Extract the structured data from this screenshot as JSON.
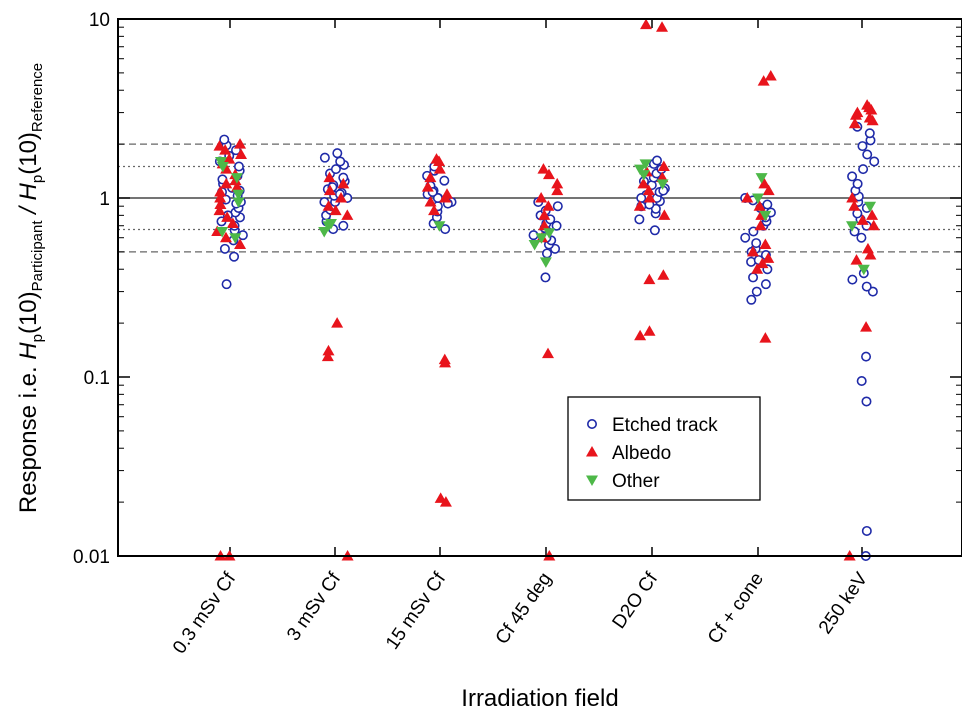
{
  "chart_data": {
    "type": "scatter",
    "xlabel": "Irradiation field",
    "ylabel": {
      "prefix": "Response i.e. ",
      "H": "H",
      "p": "p",
      "arg": "(10)",
      "participant": "Participant",
      "slash": " / ",
      "reference": "Reference"
    },
    "y_scale": "log",
    "ylim": [
      0.01,
      10
    ],
    "y_ticks": [
      {
        "value": 0.01,
        "label": "0.01"
      },
      {
        "value": 0.1,
        "label": "0.1"
      },
      {
        "value": 1,
        "label": "1"
      },
      {
        "value": 10,
        "label": "10"
      }
    ],
    "reference_lines": [
      {
        "value": 1,
        "style": "solid"
      },
      {
        "value": 1.5,
        "style": "dotted"
      },
      {
        "value": 0.667,
        "style": "dotted"
      },
      {
        "value": 2,
        "style": "dashed"
      },
      {
        "value": 0.5,
        "style": "dashed"
      }
    ],
    "categories": [
      "0.3 mSv Cf",
      "3 mSv Cf",
      "15 mSv Cf",
      "Cf 45 deg",
      "D2O Cf",
      "Cf + cone",
      "250 keV"
    ],
    "legend_position": "center-right",
    "colors": {
      "etched_track": "#1f2aa8",
      "albedo": "#e8141c",
      "other": "#4db848"
    },
    "series": [
      {
        "name": "Etched track",
        "marker": "open-circle",
        "points": [
          [
            0,
            0.47
          ],
          [
            0,
            0.52
          ],
          [
            0,
            0.58
          ],
          [
            0,
            0.62
          ],
          [
            0,
            0.66
          ],
          [
            0,
            0.7
          ],
          [
            0,
            0.74
          ],
          [
            0,
            0.78
          ],
          [
            0,
            0.83
          ],
          [
            0,
            0.88
          ],
          [
            0,
            0.93
          ],
          [
            0,
            0.98
          ],
          [
            0,
            1.03
          ],
          [
            0,
            1.08
          ],
          [
            0,
            1.14
          ],
          [
            0,
            1.2
          ],
          [
            0,
            1.27
          ],
          [
            0,
            1.33
          ],
          [
            0,
            1.42
          ],
          [
            0,
            1.5
          ],
          [
            0,
            1.6
          ],
          [
            0,
            1.72
          ],
          [
            0,
            1.85
          ],
          [
            0,
            1.97
          ],
          [
            0,
            2.12
          ],
          [
            0,
            0.33
          ],
          [
            0,
            0.95
          ],
          [
            0,
            1.1
          ],
          [
            0,
            0.8
          ],
          [
            1,
            0.67
          ],
          [
            1,
            0.7
          ],
          [
            1,
            0.74
          ],
          [
            1,
            0.8
          ],
          [
            1,
            0.86
          ],
          [
            1,
            0.9
          ],
          [
            1,
            0.95
          ],
          [
            1,
            1.0
          ],
          [
            1,
            1.03
          ],
          [
            1,
            1.07
          ],
          [
            1,
            1.12
          ],
          [
            1,
            1.18
          ],
          [
            1,
            1.24
          ],
          [
            1,
            1.3
          ],
          [
            1,
            1.37
          ],
          [
            1,
            1.45
          ],
          [
            1,
            1.53
          ],
          [
            1,
            1.6
          ],
          [
            1,
            1.68
          ],
          [
            1,
            1.78
          ],
          [
            1,
            0.95
          ],
          [
            1,
            1.05
          ],
          [
            1,
            1.15
          ],
          [
            2,
            0.67
          ],
          [
            2,
            0.72
          ],
          [
            2,
            0.78
          ],
          [
            2,
            0.84
          ],
          [
            2,
            0.9
          ],
          [
            2,
            0.95
          ],
          [
            2,
            1.0
          ],
          [
            2,
            1.05
          ],
          [
            2,
            1.1
          ],
          [
            2,
            1.17
          ],
          [
            2,
            1.25
          ],
          [
            2,
            1.33
          ],
          [
            2,
            1.42
          ],
          [
            2,
            1.5
          ],
          [
            2,
            1.0
          ],
          [
            2,
            1.08
          ],
          [
            2,
            0.93
          ],
          [
            3,
            0.36
          ],
          [
            3,
            0.49
          ],
          [
            3,
            0.52
          ],
          [
            3,
            0.55
          ],
          [
            3,
            0.58
          ],
          [
            3,
            0.62
          ],
          [
            3,
            0.65
          ],
          [
            3,
            0.68
          ],
          [
            3,
            0.72
          ],
          [
            3,
            0.76
          ],
          [
            3,
            0.8
          ],
          [
            3,
            0.85
          ],
          [
            3,
            0.9
          ],
          [
            3,
            0.95
          ],
          [
            3,
            0.6
          ],
          [
            3,
            0.7
          ],
          [
            4,
            0.66
          ],
          [
            4,
            0.76
          ],
          [
            4,
            0.82
          ],
          [
            4,
            0.87
          ],
          [
            4,
            0.92
          ],
          [
            4,
            0.96
          ],
          [
            4,
            1.0
          ],
          [
            4,
            1.04
          ],
          [
            4,
            1.08
          ],
          [
            4,
            1.13
          ],
          [
            4,
            1.18
          ],
          [
            4,
            1.24
          ],
          [
            4,
            1.3
          ],
          [
            4,
            1.37
          ],
          [
            4,
            1.45
          ],
          [
            4,
            1.55
          ],
          [
            4,
            1.62
          ],
          [
            4,
            1.0
          ],
          [
            4,
            1.1
          ],
          [
            4,
            0.9
          ],
          [
            5,
            0.27
          ],
          [
            5,
            0.3
          ],
          [
            5,
            0.33
          ],
          [
            5,
            0.36
          ],
          [
            5,
            0.4
          ],
          [
            5,
            0.44
          ],
          [
            5,
            0.48
          ],
          [
            5,
            0.52
          ],
          [
            5,
            0.56
          ],
          [
            5,
            0.6
          ],
          [
            5,
            0.65
          ],
          [
            5,
            0.7
          ],
          [
            5,
            0.74
          ],
          [
            5,
            0.78
          ],
          [
            5,
            0.83
          ],
          [
            5,
            0.88
          ],
          [
            5,
            0.92
          ],
          [
            5,
            0.97
          ],
          [
            5,
            1.0
          ],
          [
            5,
            0.5
          ],
          [
            5,
            0.45
          ],
          [
            6,
            0.01
          ],
          [
            6,
            0.0138
          ],
          [
            6,
            0.073
          ],
          [
            6,
            0.095
          ],
          [
            6,
            0.13
          ],
          [
            6,
            0.3
          ],
          [
            6,
            0.32
          ],
          [
            6,
            0.35
          ],
          [
            6,
            0.38
          ],
          [
            6,
            0.65
          ],
          [
            6,
            0.7
          ],
          [
            6,
            0.76
          ],
          [
            6,
            0.82
          ],
          [
            6,
            0.88
          ],
          [
            6,
            0.95
          ],
          [
            6,
            1.02
          ],
          [
            6,
            1.1
          ],
          [
            6,
            1.2
          ],
          [
            6,
            1.32
          ],
          [
            6,
            1.45
          ],
          [
            6,
            1.6
          ],
          [
            6,
            1.75
          ],
          [
            6,
            1.95
          ],
          [
            6,
            2.1
          ],
          [
            6,
            2.3
          ],
          [
            6,
            2.5
          ],
          [
            6,
            0.6
          ]
        ]
      },
      {
        "name": "Albedo",
        "marker": "filled-triangle-up",
        "points": [
          [
            0,
            0.01
          ],
          [
            0,
            0.01
          ],
          [
            0,
            0.55
          ],
          [
            0,
            0.6
          ],
          [
            0,
            0.65
          ],
          [
            0,
            0.72
          ],
          [
            0,
            0.78
          ],
          [
            0,
            0.85
          ],
          [
            0,
            0.92
          ],
          [
            0,
            1.0
          ],
          [
            0,
            1.08
          ],
          [
            0,
            1.15
          ],
          [
            0,
            1.25
          ],
          [
            0,
            1.35
          ],
          [
            0,
            1.45
          ],
          [
            0,
            1.55
          ],
          [
            0,
            1.65
          ],
          [
            0,
            1.75
          ],
          [
            0,
            1.85
          ],
          [
            0,
            1.95
          ],
          [
            0,
            2.0
          ],
          [
            0,
            1.2
          ],
          [
            1,
            0.01
          ],
          [
            1,
            0.13
          ],
          [
            1,
            0.14
          ],
          [
            1,
            0.2
          ],
          [
            1,
            0.8
          ],
          [
            1,
            0.9
          ],
          [
            1,
            1.0
          ],
          [
            1,
            1.1
          ],
          [
            1,
            1.2
          ],
          [
            1,
            1.3
          ],
          [
            1,
            0.85
          ],
          [
            2,
            0.02
          ],
          [
            2,
            0.021
          ],
          [
            2,
            0.12
          ],
          [
            2,
            0.125
          ],
          [
            2,
            0.85
          ],
          [
            2,
            0.95
          ],
          [
            2,
            1.05
          ],
          [
            2,
            1.15
          ],
          [
            2,
            1.3
          ],
          [
            2,
            1.45
          ],
          [
            2,
            1.6
          ],
          [
            2,
            1.65
          ],
          [
            2,
            1.0
          ],
          [
            3,
            0.01
          ],
          [
            3,
            0.135
          ],
          [
            3,
            0.6
          ],
          [
            3,
            0.7
          ],
          [
            3,
            0.8
          ],
          [
            3,
            0.9
          ],
          [
            3,
            1.0
          ],
          [
            3,
            1.1
          ],
          [
            3,
            1.2
          ],
          [
            3,
            1.35
          ],
          [
            3,
            1.45
          ],
          [
            4,
            9.0
          ],
          [
            4,
            9.3
          ],
          [
            4,
            0.17
          ],
          [
            4,
            0.18
          ],
          [
            4,
            0.35
          ],
          [
            4,
            0.37
          ],
          [
            4,
            0.8
          ],
          [
            4,
            0.9
          ],
          [
            4,
            1.0
          ],
          [
            4,
            1.1
          ],
          [
            4,
            1.2
          ],
          [
            4,
            1.3
          ],
          [
            4,
            1.4
          ],
          [
            4,
            1.5
          ],
          [
            5,
            4.5
          ],
          [
            5,
            4.8
          ],
          [
            5,
            0.165
          ],
          [
            5,
            0.4
          ],
          [
            5,
            0.43
          ],
          [
            5,
            0.46
          ],
          [
            5,
            0.5
          ],
          [
            5,
            0.55
          ],
          [
            5,
            0.7
          ],
          [
            5,
            0.8
          ],
          [
            5,
            0.9
          ],
          [
            5,
            1.0
          ],
          [
            5,
            1.1
          ],
          [
            5,
            1.2
          ],
          [
            6,
            0.01
          ],
          [
            6,
            0.19
          ],
          [
            6,
            0.45
          ],
          [
            6,
            0.48
          ],
          [
            6,
            0.52
          ],
          [
            6,
            0.7
          ],
          [
            6,
            0.75
          ],
          [
            6,
            0.8
          ],
          [
            6,
            0.9
          ],
          [
            6,
            1.0
          ],
          [
            6,
            2.6
          ],
          [
            6,
            2.7
          ],
          [
            6,
            2.8
          ],
          [
            6,
            2.9
          ],
          [
            6,
            3.0
          ],
          [
            6,
            3.1
          ],
          [
            6,
            3.2
          ],
          [
            6,
            3.3
          ]
        ]
      },
      {
        "name": "Other",
        "marker": "filled-triangle-down",
        "points": [
          [
            0,
            0.6
          ],
          [
            0,
            0.65
          ],
          [
            0,
            0.95
          ],
          [
            0,
            1.05
          ],
          [
            0,
            1.3
          ],
          [
            0,
            1.5
          ],
          [
            0,
            1.6
          ],
          [
            1,
            0.65
          ],
          [
            1,
            0.7
          ],
          [
            1,
            0.72
          ],
          [
            2,
            0.7
          ],
          [
            3,
            0.44
          ],
          [
            3,
            0.55
          ],
          [
            3,
            0.6
          ],
          [
            3,
            0.64
          ],
          [
            4,
            1.2
          ],
          [
            4,
            1.35
          ],
          [
            4,
            1.45
          ],
          [
            4,
            1.55
          ],
          [
            5,
            0.8
          ],
          [
            5,
            1.0
          ],
          [
            5,
            1.3
          ],
          [
            6,
            0.4
          ],
          [
            6,
            0.7
          ],
          [
            6,
            0.9
          ]
        ]
      }
    ]
  }
}
